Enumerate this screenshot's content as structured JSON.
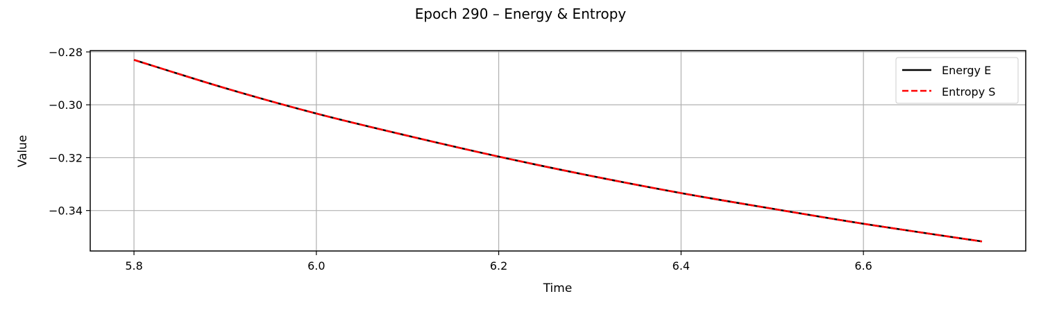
{
  "chart_data": {
    "type": "line",
    "title": "Epoch 290 – Energy & Entropy",
    "xlabel": "Time",
    "ylabel": "Value",
    "xlim": [
      5.752,
      6.778
    ],
    "ylim": [
      -0.3553,
      -0.2795
    ],
    "x_ticks": [
      5.8,
      6.0,
      6.2,
      6.4,
      6.6
    ],
    "x_tick_labels": [
      "5.8",
      "6.0",
      "6.2",
      "6.4",
      "6.6"
    ],
    "y_ticks": [
      -0.28,
      -0.3,
      -0.32,
      -0.34
    ],
    "y_tick_labels": [
      "−0.28",
      "−0.30",
      "−0.32",
      "−0.34"
    ],
    "grid": true,
    "legend_position": "top-right",
    "x": [
      5.8,
      5.9,
      6.0,
      6.1,
      6.2,
      6.3,
      6.4,
      6.5,
      6.6,
      6.73
    ],
    "series": [
      {
        "name": "Energy E",
        "color": "#000000",
        "dash": "solid",
        "values": [
          -0.283,
          -0.2937,
          -0.3033,
          -0.3117,
          -0.3196,
          -0.3268,
          -0.3334,
          -0.3393,
          -0.345,
          -0.3517
        ]
      },
      {
        "name": "Entropy S",
        "color": "#ff0000",
        "dash": "dashed",
        "values": [
          -0.283,
          -0.2937,
          -0.3033,
          -0.3117,
          -0.3196,
          -0.3268,
          -0.3334,
          -0.3393,
          -0.345,
          -0.3517
        ]
      }
    ]
  }
}
